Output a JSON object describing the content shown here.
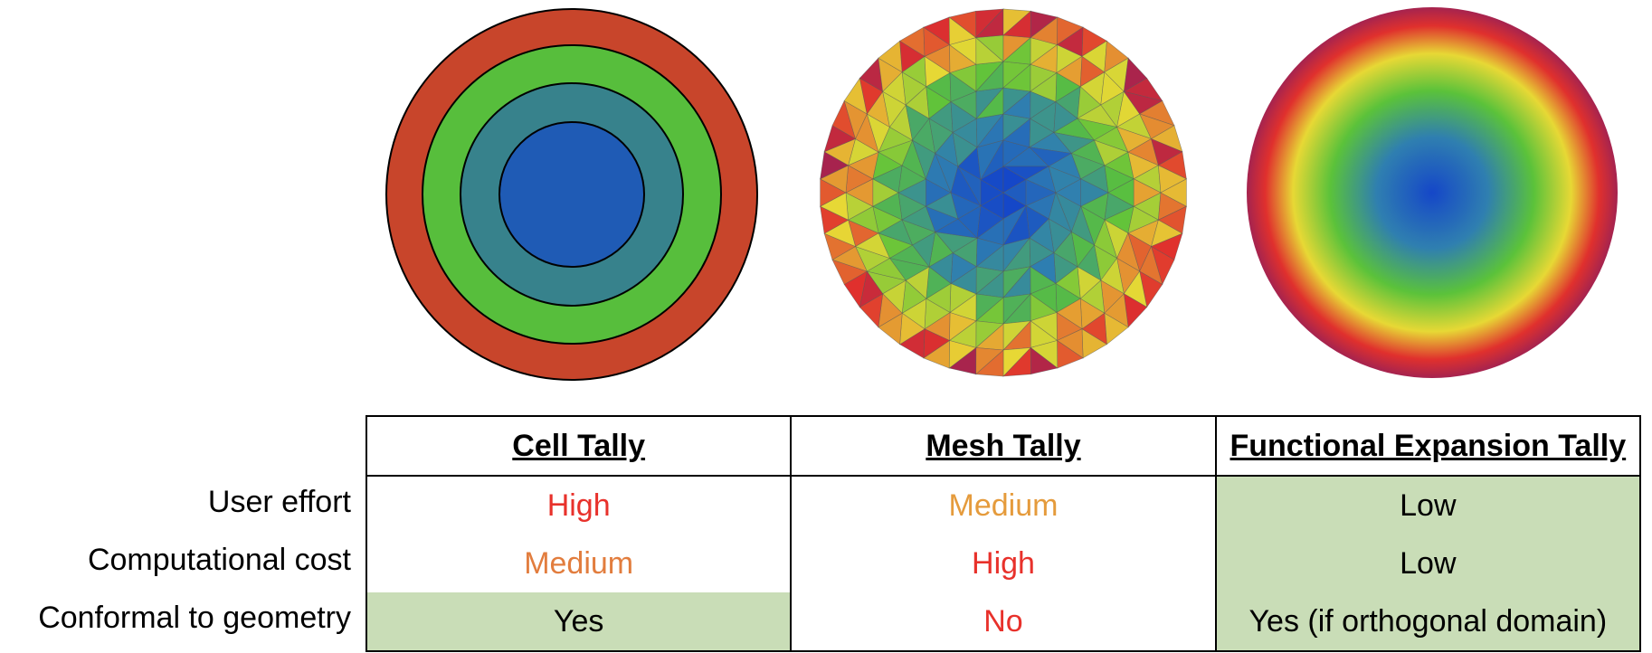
{
  "columns": [
    "Cell Tally",
    "Mesh Tally",
    "Functional Expansion Tally"
  ],
  "rows": [
    {
      "label": "User effort",
      "cells": [
        {
          "text": "High",
          "color": "#e8312b",
          "highlight": false
        },
        {
          "text": "Medium",
          "color": "#e59b3c",
          "highlight": false
        },
        {
          "text": "Low",
          "color": "#000000",
          "highlight": true
        }
      ]
    },
    {
      "label": "Computational cost",
      "cells": [
        {
          "text": "Medium",
          "color": "#e27d3e",
          "highlight": false
        },
        {
          "text": "High",
          "color": "#e8312b",
          "highlight": false
        },
        {
          "text": "Low",
          "color": "#000000",
          "highlight": true
        }
      ]
    },
    {
      "label": "Conformal to geometry",
      "cells": [
        {
          "text": "Yes",
          "color": "#000000",
          "highlight": true
        },
        {
          "text": "No",
          "color": "#e8312b",
          "highlight": false
        },
        {
          "text": "Yes (if orthogonal domain)",
          "color": "#000000",
          "highlight": true
        }
      ]
    }
  ],
  "figure_colors": {
    "cell_rings": [
      "#c8452b",
      "#57be3c",
      "#37828c",
      "#1f5bb5"
    ],
    "gradient_stops": [
      "#1547c8",
      "#2f7fb0",
      "#5bc23a",
      "#e7d835",
      "#e0302d",
      "#a5234f"
    ]
  }
}
